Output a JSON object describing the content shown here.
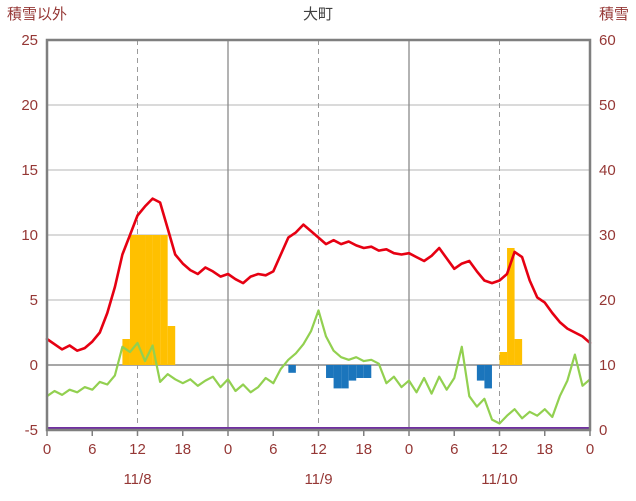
{
  "header": {
    "title": "大町",
    "left_axis_title": "積雪以外",
    "right_axis_title": "積雪"
  },
  "colors": {
    "axis_text": "#953735",
    "title_text": "#404040",
    "grid_minor": "#b5b5b5",
    "grid_major": "#8a8a8a",
    "zero_line": "#8a8a8a",
    "frame": "#7f7f7f",
    "red_line": "#e60012",
    "green_line": "#92d050",
    "orange_bar": "#ffc000",
    "blue_bar": "#1b75bc",
    "purple_line": "#7030a0"
  },
  "chart_data": {
    "type": "line",
    "title": "大町",
    "left_axis": {
      "label": "積雪以外",
      "min": -5,
      "max": 25,
      "ticks": [
        25,
        20,
        15,
        10,
        5,
        0,
        -5
      ]
    },
    "right_axis": {
      "label": "積雪",
      "min": 0,
      "max": 60,
      "ticks": [
        60,
        50,
        40,
        30,
        20,
        10,
        0
      ]
    },
    "x_axis": {
      "min": 0,
      "max": 72,
      "tick_step": 6,
      "labels": [
        "0",
        "6",
        "12",
        "18",
        "0",
        "6",
        "12",
        "18",
        "0",
        "6",
        "12",
        "18",
        "0"
      ],
      "day_labels": [
        {
          "text": "11/8",
          "hour": 12
        },
        {
          "text": "11/9",
          "hour": 36
        },
        {
          "text": "11/10",
          "hour": 60
        }
      ]
    },
    "grid": {
      "horizontal": "solid",
      "vertical_solid_every_hours": 24,
      "vertical_dashed_every_hours": 12
    },
    "legend": "none",
    "series": [
      {
        "name": "orange-bars",
        "type": "bar",
        "axis": "left",
        "color": "#ffc000",
        "values": {
          "11": 2,
          "12": 10,
          "13": 10,
          "14": 10,
          "15": 10,
          "16": 10,
          "17": 3,
          "61": 1,
          "62": 9,
          "63": 2
        }
      },
      {
        "name": "blue-bars",
        "type": "bar",
        "axis": "left",
        "color": "#1b75bc",
        "values": {
          "33": -0.6,
          "38": -1.0,
          "39": -1.8,
          "40": -1.8,
          "41": -1.2,
          "42": -1.0,
          "43": -1.0,
          "58": -1.2,
          "59": -1.8
        }
      },
      {
        "name": "green-line",
        "type": "line",
        "axis": "left",
        "color": "#92d050",
        "width": 2.2,
        "values": [
          -2.4,
          -2.0,
          -2.3,
          -1.9,
          -2.1,
          -1.7,
          -1.9,
          -1.3,
          -1.5,
          -0.8,
          1.4,
          1.0,
          1.7,
          0.3,
          1.5,
          -1.3,
          -0.7,
          -1.1,
          -1.4,
          -1.1,
          -1.6,
          -1.2,
          -0.9,
          -1.7,
          -1.1,
          -2.0,
          -1.5,
          -2.1,
          -1.7,
          -1.0,
          -1.4,
          -0.3,
          0.4,
          0.9,
          1.6,
          2.6,
          4.2,
          2.2,
          1.1,
          0.6,
          0.4,
          0.6,
          0.3,
          0.4,
          0.1,
          -1.4,
          -0.9,
          -1.7,
          -1.2,
          -2.1,
          -1.0,
          -2.2,
          -0.9,
          -1.9,
          -1.0,
          1.4,
          -2.4,
          -3.2,
          -2.6,
          -4.2,
          -4.5,
          -3.9,
          -3.4,
          -4.1,
          -3.6,
          -3.9,
          -3.4,
          -4.0,
          -2.4,
          -1.2,
          0.8,
          -1.6,
          -1.1
        ]
      },
      {
        "name": "red-line",
        "type": "line",
        "axis": "left",
        "color": "#e60012",
        "width": 2.6,
        "values": [
          2.0,
          1.6,
          1.2,
          1.5,
          1.1,
          1.3,
          1.8,
          2.5,
          4.0,
          6.0,
          8.5,
          10.0,
          11.5,
          12.2,
          12.8,
          12.5,
          10.5,
          8.5,
          7.8,
          7.3,
          7.0,
          7.5,
          7.2,
          6.8,
          7.0,
          6.6,
          6.3,
          6.8,
          7.0,
          6.9,
          7.2,
          8.5,
          9.8,
          10.2,
          10.8,
          10.3,
          9.8,
          9.3,
          9.6,
          9.3,
          9.5,
          9.2,
          9.0,
          9.1,
          8.8,
          8.9,
          8.6,
          8.5,
          8.6,
          8.3,
          8.0,
          8.4,
          9.0,
          8.2,
          7.4,
          7.8,
          8.0,
          7.2,
          6.5,
          6.3,
          6.5,
          7.0,
          8.7,
          8.3,
          6.5,
          5.2,
          4.8,
          4.0,
          3.3,
          2.8,
          2.5,
          2.2,
          1.7
        ]
      },
      {
        "name": "purple-line",
        "type": "line",
        "axis": "right",
        "color": "#7030a0",
        "constant": 0
      }
    ]
  }
}
